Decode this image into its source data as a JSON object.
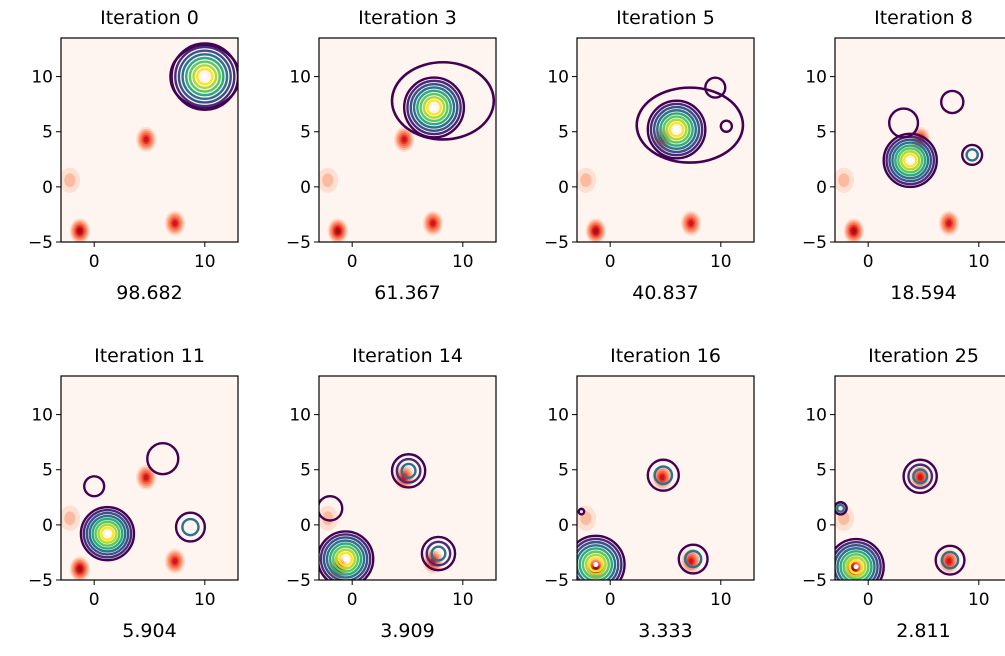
{
  "chart_data": {
    "type": "contour",
    "x_ticks": [
      "0",
      "10"
    ],
    "y_ticks": [
      "10",
      "5",
      "0",
      "−5"
    ],
    "xlim": [
      -3,
      13
    ],
    "ylim": [
      -5,
      13.5
    ],
    "target": {
      "colormap": "Reds",
      "background": "#fff5f0",
      "peaks": [
        {
          "x": -2.2,
          "y": 0.6,
          "intensity": 0.3
        },
        {
          "x": -1.3,
          "y": -4.0,
          "intensity": 1.0
        },
        {
          "x": 4.7,
          "y": 4.3,
          "intensity": 0.85
        },
        {
          "x": 7.3,
          "y": -3.3,
          "intensity": 0.8
        }
      ]
    },
    "panels": [
      {
        "title": "Iteration 0",
        "loss": "98.682",
        "components": [
          {
            "x": 10.0,
            "y": 10.0,
            "r": 3.0,
            "weight": 1.0,
            "levels": 8
          }
        ],
        "blob": {
          "x": 10.0,
          "y": 10.0,
          "rx": 3.1,
          "ry": 2.8
        }
      },
      {
        "title": "Iteration 3",
        "loss": "61.367",
        "components": [
          {
            "x": 7.4,
            "y": 7.2,
            "r": 2.7,
            "weight": 1.0,
            "levels": 8
          }
        ],
        "blob": {
          "x": 8.2,
          "y": 7.8,
          "rx": 4.6,
          "ry": 3.5
        }
      },
      {
        "title": "Iteration 5",
        "loss": "40.837",
        "components": [
          {
            "x": 6.0,
            "y": 5.2,
            "r": 2.6,
            "weight": 1.0,
            "levels": 8
          },
          {
            "x": 9.5,
            "y": 9.0,
            "r": 0.9,
            "weight": 0.2,
            "levels": 1
          },
          {
            "x": 10.5,
            "y": 5.5,
            "r": 0.5,
            "weight": 0.2,
            "levels": 1
          }
        ],
        "blob": {
          "x": 7.2,
          "y": 5.6,
          "rx": 4.8,
          "ry": 3.4
        }
      },
      {
        "title": "Iteration 8",
        "loss": "18.594",
        "components": [
          {
            "x": 3.8,
            "y": 2.4,
            "r": 2.4,
            "weight": 1.0,
            "levels": 8
          },
          {
            "x": 7.6,
            "y": 7.7,
            "r": 1.0,
            "weight": 0.2,
            "levels": 1
          },
          {
            "x": 9.4,
            "y": 2.9,
            "r": 0.9,
            "weight": 0.3,
            "levels": 2
          },
          {
            "x": 3.2,
            "y": 5.8,
            "r": 1.3,
            "weight": 0.2,
            "levels": 1
          }
        ]
      },
      {
        "title": "Iteration 11",
        "loss": "5.904",
        "components": [
          {
            "x": 1.2,
            "y": -0.8,
            "r": 2.4,
            "weight": 1.0,
            "levels": 8
          },
          {
            "x": 6.2,
            "y": 6.0,
            "r": 1.4,
            "weight": 0.2,
            "levels": 1
          },
          {
            "x": 0.0,
            "y": 3.5,
            "r": 0.9,
            "weight": 0.2,
            "levels": 1
          },
          {
            "x": 8.7,
            "y": -0.2,
            "r": 1.3,
            "weight": 0.3,
            "levels": 2
          }
        ]
      },
      {
        "title": "Iteration 14",
        "loss": "3.909",
        "components": [
          {
            "x": -0.6,
            "y": -3.1,
            "r": 2.5,
            "weight": 1.0,
            "levels": 8
          },
          {
            "x": 5.1,
            "y": 4.9,
            "r": 1.5,
            "weight": 0.3,
            "levels": 3
          },
          {
            "x": 7.8,
            "y": -2.6,
            "r": 1.5,
            "weight": 0.3,
            "levels": 3
          },
          {
            "x": -2.0,
            "y": 1.5,
            "r": 1.1,
            "weight": 0.2,
            "levels": 1
          }
        ]
      },
      {
        "title": "Iteration 16",
        "loss": "3.333",
        "components": [
          {
            "x": -1.3,
            "y": -3.6,
            "r": 2.6,
            "weight": 1.0,
            "levels": 8
          },
          {
            "x": 4.8,
            "y": 4.5,
            "r": 1.4,
            "weight": 0.3,
            "levels": 2
          },
          {
            "x": 7.5,
            "y": -3.1,
            "r": 1.3,
            "weight": 0.3,
            "levels": 2
          },
          {
            "x": -2.6,
            "y": 1.2,
            "r": 0.25,
            "weight": 0.2,
            "levels": 1
          }
        ]
      },
      {
        "title": "Iteration 25",
        "loss": "2.811",
        "components": [
          {
            "x": -1.1,
            "y": -3.8,
            "r": 2.5,
            "weight": 1.0,
            "levels": 8
          },
          {
            "x": 4.7,
            "y": 4.4,
            "r": 1.5,
            "weight": 0.3,
            "levels": 3
          },
          {
            "x": 7.4,
            "y": -3.2,
            "r": 1.3,
            "weight": 0.3,
            "levels": 2
          },
          {
            "x": -2.5,
            "y": 1.5,
            "r": 0.55,
            "weight": 0.2,
            "levels": 2
          }
        ]
      }
    ]
  }
}
